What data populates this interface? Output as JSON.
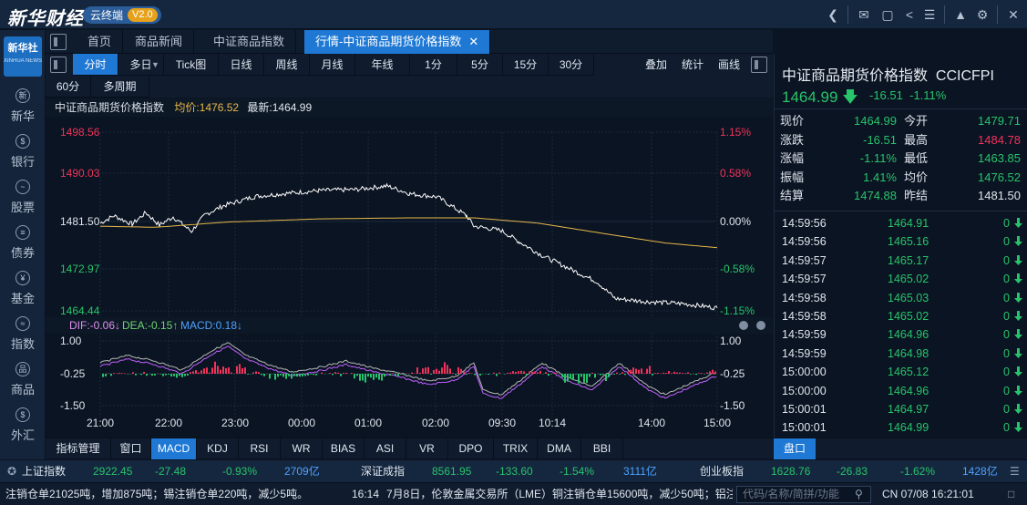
{
  "titlebar": {
    "logo": "新华财经",
    "badge": "云终端",
    "version": "V2.0"
  },
  "sidebar": {
    "logo": "新华社",
    "logo_sub": "XINHUA NEWS",
    "items": [
      {
        "label": "新华",
        "icon": "xinhua-icon"
      },
      {
        "label": "银行",
        "icon": "dollar-icon"
      },
      {
        "label": "股票",
        "icon": "line-chart-icon"
      },
      {
        "label": "债券",
        "icon": "bond-icon"
      },
      {
        "label": "基金",
        "icon": "fund-icon"
      },
      {
        "label": "指数",
        "icon": "index-icon"
      },
      {
        "label": "商品",
        "icon": "commodity-icon"
      },
      {
        "label": "外汇",
        "icon": "forex-icon"
      }
    ]
  },
  "tabs": [
    {
      "label": "首页"
    },
    {
      "label": "商品新闻"
    },
    {
      "label": "中证商品指数"
    },
    {
      "label": "行情-中证商品期货价格指数",
      "active": true
    }
  ],
  "periods": [
    "分时",
    "多日",
    "Tick图",
    "日线",
    "周线",
    "月线",
    "年线",
    "1分",
    "5分",
    "15分",
    "30分",
    "60分",
    "多周期"
  ],
  "period_tools": [
    "叠加",
    "统计",
    "画线"
  ],
  "chart_header": {
    "name": "中证商品期货价格指数",
    "avg": "均价:1476.52",
    "last": "最新:1464.99"
  },
  "macd_header": {
    "dif": "DIF:-0.06↓",
    "dea": "DEA:-0.15↑",
    "macd": "MACD:0.18↓"
  },
  "indicators": [
    "指标管理",
    "窗口",
    "MACD",
    "KDJ",
    "RSI",
    "WR",
    "BIAS",
    "ASI",
    "VR",
    "DPO",
    "TRIX",
    "DMA",
    "BBI"
  ],
  "chart_data": {
    "type": "line",
    "price_axis": [
      "1498.56",
      "1490.03",
      "1481.50",
      "1472.97",
      "1464.44"
    ],
    "pct_axis": [
      "1.15%",
      "0.58%",
      "0.00%",
      "-0.58%",
      "-1.15%"
    ],
    "macd_axis": [
      "1.00",
      "-0.25",
      "-1.50"
    ],
    "time_axis": [
      "21:00",
      "22:00",
      "23:00",
      "00:00",
      "01:00",
      "02:00",
      "09:30",
      "10:14",
      "14:00",
      "15:00"
    ],
    "ylim": [
      1464.44,
      1498.56
    ],
    "prev_close": 1481.5,
    "colors": {
      "price": "#ffffff",
      "avg": "#e6b84a",
      "up": "#f0335a",
      "down": "#27c46b",
      "dif": "#b6b6b6",
      "dea": "#c060ff"
    }
  },
  "quote": {
    "title": "中证商品期货价格指数",
    "code": "CCICFPI",
    "price": "1464.99",
    "change": "-16.51",
    "pct": "-1.11%",
    "rows": [
      {
        "k": "现价",
        "v": "1464.99",
        "k2": "今开",
        "v2": "1479.71",
        "c2": "green"
      },
      {
        "k": "涨跌",
        "v": "-16.51",
        "k2": "最高",
        "v2": "1484.78",
        "c2": "red"
      },
      {
        "k": "涨幅",
        "v": "-1.11%",
        "k2": "最低",
        "v2": "1463.85",
        "c2": "green"
      },
      {
        "k": "振幅",
        "v": "1.41%",
        "k2": "均价",
        "v2": "1476.52",
        "c2": "green",
        "vc": "white"
      },
      {
        "k": "结算",
        "v": "1474.88",
        "k2": "昨结",
        "v2": "1481.50",
        "c2": "white",
        "vc": "white"
      }
    ],
    "ticks": [
      {
        "t": "14:59:56",
        "p": "1464.91",
        "q": "0"
      },
      {
        "t": "14:59:56",
        "p": "1465.16",
        "q": "0"
      },
      {
        "t": "14:59:57",
        "p": "1465.17",
        "q": "0"
      },
      {
        "t": "14:59:57",
        "p": "1465.02",
        "q": "0"
      },
      {
        "t": "14:59:58",
        "p": "1465.03",
        "q": "0"
      },
      {
        "t": "14:59:58",
        "p": "1465.02",
        "q": "0"
      },
      {
        "t": "14:59:59",
        "p": "1464.96",
        "q": "0"
      },
      {
        "t": "14:59:59",
        "p": "1464.98",
        "q": "0"
      },
      {
        "t": "15:00:00",
        "p": "1465.12",
        "q": "0"
      },
      {
        "t": "15:00:00",
        "p": "1464.96",
        "q": "0"
      },
      {
        "t": "15:00:01",
        "p": "1464.97",
        "q": "0"
      },
      {
        "t": "15:00:01",
        "p": "1464.99",
        "q": "0"
      }
    ],
    "tab": "盘口"
  },
  "status": {
    "sh": {
      "name": "上证指数",
      "val": "2922.45",
      "chg": "-27.48",
      "pct": "-0.93%",
      "amt": "2709亿"
    },
    "sz": {
      "name": "深证成指",
      "val": "8561.95",
      "chg": "-133.60",
      "pct": "-1.54%",
      "amt": "3111亿"
    },
    "cy": {
      "name": "创业板指",
      "val": "1628.76",
      "chg": "-26.83",
      "pct": "-1.62%",
      "amt": "1428亿"
    }
  },
  "ticker": {
    "left": "注销仓单21025吨，增加875吨；锡注销仓单220吨，减少5吨。",
    "time": "16:14",
    "news": "7月8日，伦敦金属交易所（LME）铜注销仓单15600吨，减少50吨；铝注",
    "search_placeholder": "代码/名称/简拼/功能",
    "clock": "CN 07/08 16:21:01"
  }
}
